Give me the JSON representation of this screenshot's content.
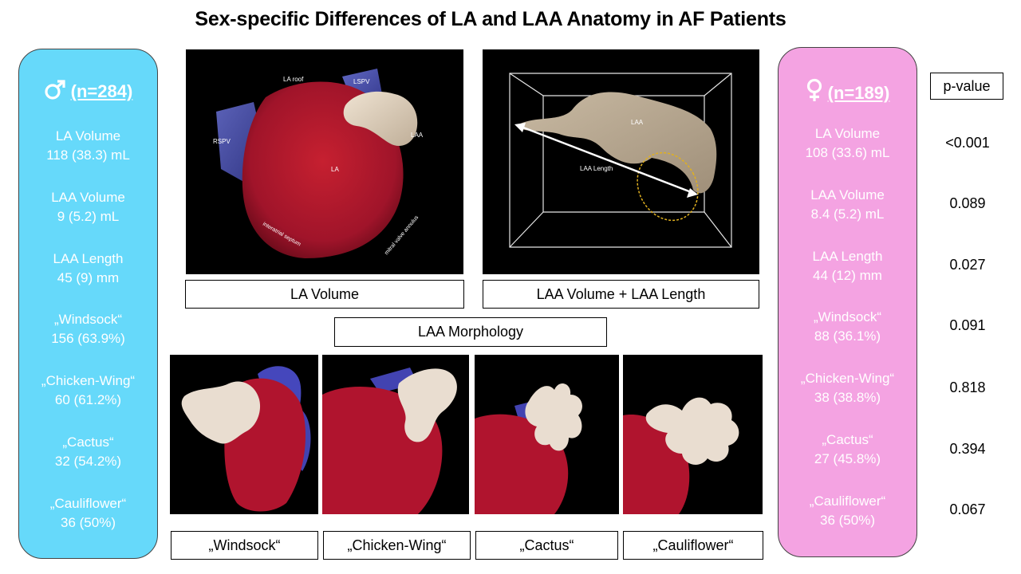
{
  "title": "Sex-specific Differences of LA and LAA Anatomy in AF Patients",
  "male": {
    "header": "(n=284)",
    "symbol": "male-symbol-icon",
    "color": "#66d9fa",
    "stats": [
      {
        "label": "LA Volume",
        "value": "118 (38.3) mL"
      },
      {
        "label": "LAA Volume",
        "value": "9 (5.2) mL"
      },
      {
        "label": "LAA Length",
        "value": "45 (9) mm"
      },
      {
        "label": "„Windsock“",
        "value": "156 (63.9%)"
      },
      {
        "label": "„Chicken-Wing“",
        "value": "60 (61.2%)"
      },
      {
        "label": "„Cactus“",
        "value": "32 (54.2%)"
      },
      {
        "label": "„Cauliflower“",
        "value": "36 (50%)"
      }
    ]
  },
  "female": {
    "header": "(n=189)",
    "symbol": "female-symbol-icon",
    "color": "#f4a3e2",
    "stats": [
      {
        "label": "LA Volume",
        "value": "108 (33.6) mL"
      },
      {
        "label": "LAA Volume",
        "value": "8.4 (5.2) mL"
      },
      {
        "label": "LAA Length",
        "value": "44 (12) mm"
      },
      {
        "label": "„Windsock“",
        "value": "88 (36.1%)"
      },
      {
        "label": "„Chicken-Wing“",
        "value": "38 (38.8%)"
      },
      {
        "label": "„Cactus“",
        "value": "27 (45.8%)"
      },
      {
        "label": "„Cauliflower“",
        "value": "36 (50%)"
      }
    ]
  },
  "pvalue": {
    "header": "p-value",
    "values": [
      "<0.001",
      "0.089",
      "0.027",
      "0.091",
      "0.818",
      "0.394",
      "0.067"
    ]
  },
  "images": {
    "la": {
      "caption": "LA Volume",
      "labels": {
        "roof": "LA roof",
        "lspv": "LSPV",
        "rspv": "RSPV",
        "la": "LA",
        "laa": "LAA",
        "septum": "interatrial septum",
        "mitral": "mitral valve annulus"
      }
    },
    "laa": {
      "caption": "LAA Volume + LAA Length",
      "labels": {
        "laa": "LAA",
        "length": "LAA Length"
      }
    }
  },
  "morphology": {
    "title": "LAA Morphology",
    "types": [
      "„Windsock“",
      "„Chicken-Wing“",
      "„Cactus“",
      "„Cauliflower“"
    ]
  }
}
